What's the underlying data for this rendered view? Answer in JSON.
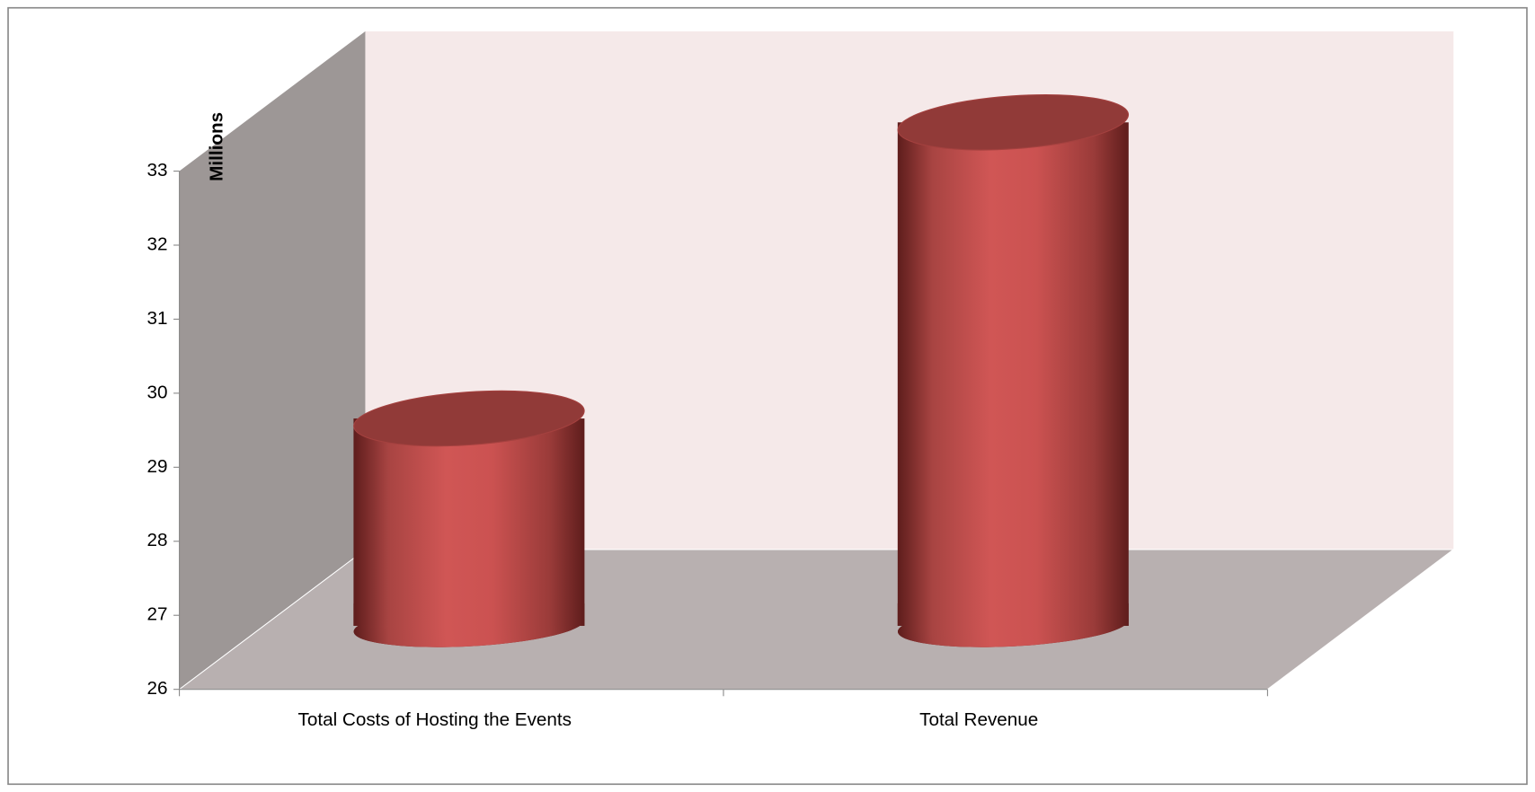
{
  "chart_data": {
    "type": "bar",
    "y_axis_label": "Millions",
    "categories": [
      "Total Costs of Hosting the Events",
      "Total Revenue"
    ],
    "values": [
      28.8,
      32.8
    ],
    "color": "#c94f4d",
    "ylim": [
      26,
      33
    ],
    "yticks": [
      26,
      27,
      28,
      29,
      30,
      31,
      32,
      33
    ]
  }
}
